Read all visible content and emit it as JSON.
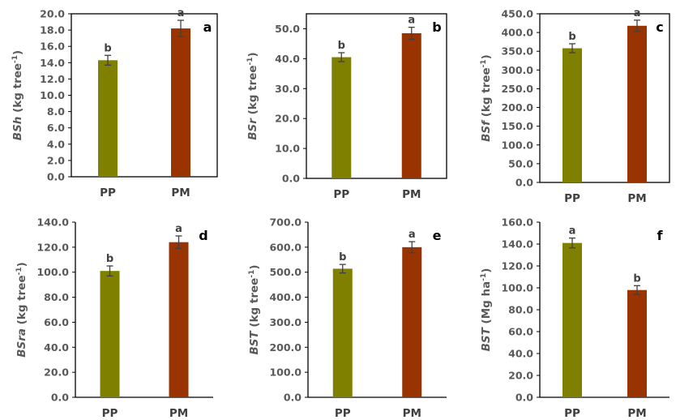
{
  "colors": {
    "PP": "#808000",
    "PM": "#993300",
    "axis": "#000000",
    "error": "#404040"
  },
  "chart_data": [
    {
      "type": "bar",
      "panel_letter": "a",
      "categories": [
        "PP",
        "PM"
      ],
      "values": [
        14.3,
        18.2
      ],
      "errors": [
        0.6,
        1.0
      ],
      "significance": [
        "b",
        "a"
      ],
      "ylabel": {
        "var": "BSh",
        "unit": " (kg tree",
        "sup": "-1",
        "close": ")"
      },
      "ylim": [
        0,
        20
      ],
      "ystep": 2,
      "yticks": [
        "0.0",
        "2.0",
        "4.0",
        "6.0",
        "8.0",
        "10.0",
        "12.0",
        "14.0",
        "16.0",
        "18.0",
        "20.0"
      ]
    },
    {
      "type": "bar",
      "panel_letter": "b",
      "categories": [
        "PP",
        "PM"
      ],
      "values": [
        40.5,
        48.5
      ],
      "errors": [
        1.5,
        2.0
      ],
      "significance": [
        "b",
        "a"
      ],
      "ylabel": {
        "var": "BSr",
        "unit": " (kg tree",
        "sup": "-1",
        "close": ")"
      },
      "ylim": [
        0,
        55
      ],
      "ystep": 10,
      "yticks": [
        "0.0",
        "10.0",
        "20.0",
        "30.0",
        "40.0",
        "50.0"
      ]
    },
    {
      "type": "bar",
      "panel_letter": "c",
      "categories": [
        "PP",
        "PM"
      ],
      "values": [
        358,
        418
      ],
      "errors": [
        12,
        15
      ],
      "significance": [
        "b",
        "a"
      ],
      "ylabel": {
        "var": "BSf",
        "unit": " (kg tree",
        "sup": "-1",
        "close": ")"
      },
      "ylim": [
        0,
        450
      ],
      "ystep": 50,
      "yticks": [
        "0.0",
        "50.0",
        "100.0",
        "150.0",
        "200.0",
        "250.0",
        "300.0",
        "350.0",
        "400.0",
        "450.0"
      ]
    },
    {
      "type": "bar",
      "panel_letter": "d",
      "categories": [
        "PP",
        "PM"
      ],
      "values": [
        101,
        124
      ],
      "errors": [
        4,
        5
      ],
      "significance": [
        "b",
        "a"
      ],
      "ylabel": {
        "var": "BSra",
        "unit": " (kg tree",
        "sup": "-1",
        "close": ")"
      },
      "ylim": [
        0,
        140
      ],
      "ystep": 20,
      "yticks": [
        "0.0",
        "20.0",
        "40.0",
        "60.0",
        "80.0",
        "100.0",
        "120.0",
        "140.0"
      ]
    },
    {
      "type": "bar",
      "panel_letter": "e",
      "categories": [
        "PP",
        "PM"
      ],
      "values": [
        514,
        600
      ],
      "errors": [
        17,
        22
      ],
      "significance": [
        "b",
        "a"
      ],
      "ylabel": {
        "var": "BST",
        "unit": " (kg tree",
        "sup": "-1",
        "close": ")"
      },
      "ylim": [
        0,
        700
      ],
      "ystep": 100,
      "yticks": [
        "0.0",
        "100.0",
        "200.0",
        "300.0",
        "400.0",
        "500.0",
        "600.0",
        "700.0"
      ]
    },
    {
      "type": "bar",
      "panel_letter": "f",
      "categories": [
        "PP",
        "PM"
      ],
      "values": [
        141,
        98
      ],
      "errors": [
        4.5,
        4
      ],
      "significance": [
        "a",
        "b"
      ],
      "ylabel": {
        "var": "BST",
        "unit": " (Mg ha",
        "sup": "-1",
        "close": ")"
      },
      "ylim": [
        0,
        160
      ],
      "ystep": 20,
      "yticks": [
        "0.0",
        "20.0",
        "40.0",
        "60.0",
        "80.0",
        "100.0",
        "120.0",
        "140.0",
        "160.0"
      ]
    }
  ]
}
